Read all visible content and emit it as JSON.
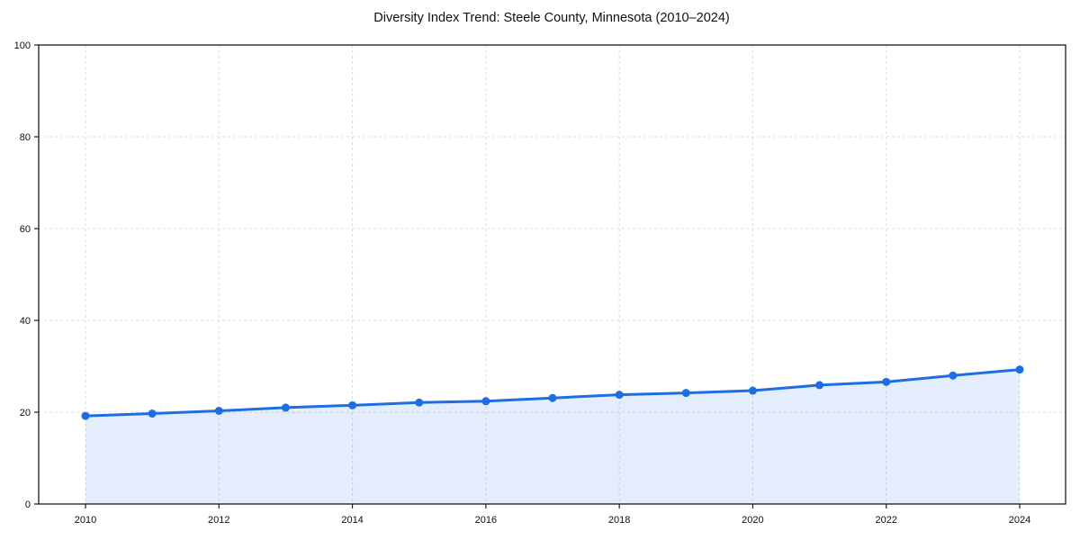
{
  "figure": {
    "background": "#ffffff"
  },
  "chart_data": {
    "type": "line",
    "title": "Diversity Index Trend: Steele County, Minnesota (2010–2024)",
    "x": [
      2010,
      2011,
      2012,
      2013,
      2014,
      2015,
      2016,
      2017,
      2018,
      2019,
      2020,
      2021,
      2022,
      2023,
      2024
    ],
    "values": [
      19.2,
      19.7,
      20.3,
      21.0,
      21.5,
      22.1,
      22.4,
      23.1,
      23.8,
      24.2,
      24.7,
      25.9,
      26.6,
      28.0,
      29.3
    ],
    "xlabel": "",
    "ylabel": "",
    "xlim": [
      2009.3,
      2024.7
    ],
    "ylim": [
      0,
      100
    ],
    "xticks": [
      2010,
      2012,
      2014,
      2016,
      2018,
      2020,
      2022,
      2024
    ],
    "yticks": [
      0,
      20,
      40,
      60,
      80,
      100
    ],
    "grid": "dashed-both",
    "legend": "none",
    "colors": {
      "line": "#1d6ee3",
      "marker": "#1d6ee3",
      "fill": "#1d6ee3",
      "fill_opacity": 0.12,
      "grid": "#dcdcdc",
      "spine": "#1a1a1a",
      "text": "#111111"
    }
  }
}
